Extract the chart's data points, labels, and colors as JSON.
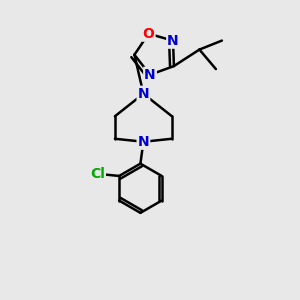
{
  "bg_color": "#e8e8e8",
  "bond_color": "#000000",
  "N_color": "#0000cc",
  "O_color": "#ff0000",
  "Cl_color": "#00aa00",
  "line_width": 1.8,
  "font_size_atom": 10,
  "fig_size": [
    3.0,
    3.0
  ],
  "dpi": 100,
  "xlim": [
    0,
    10
  ],
  "ylim": [
    0,
    10
  ]
}
